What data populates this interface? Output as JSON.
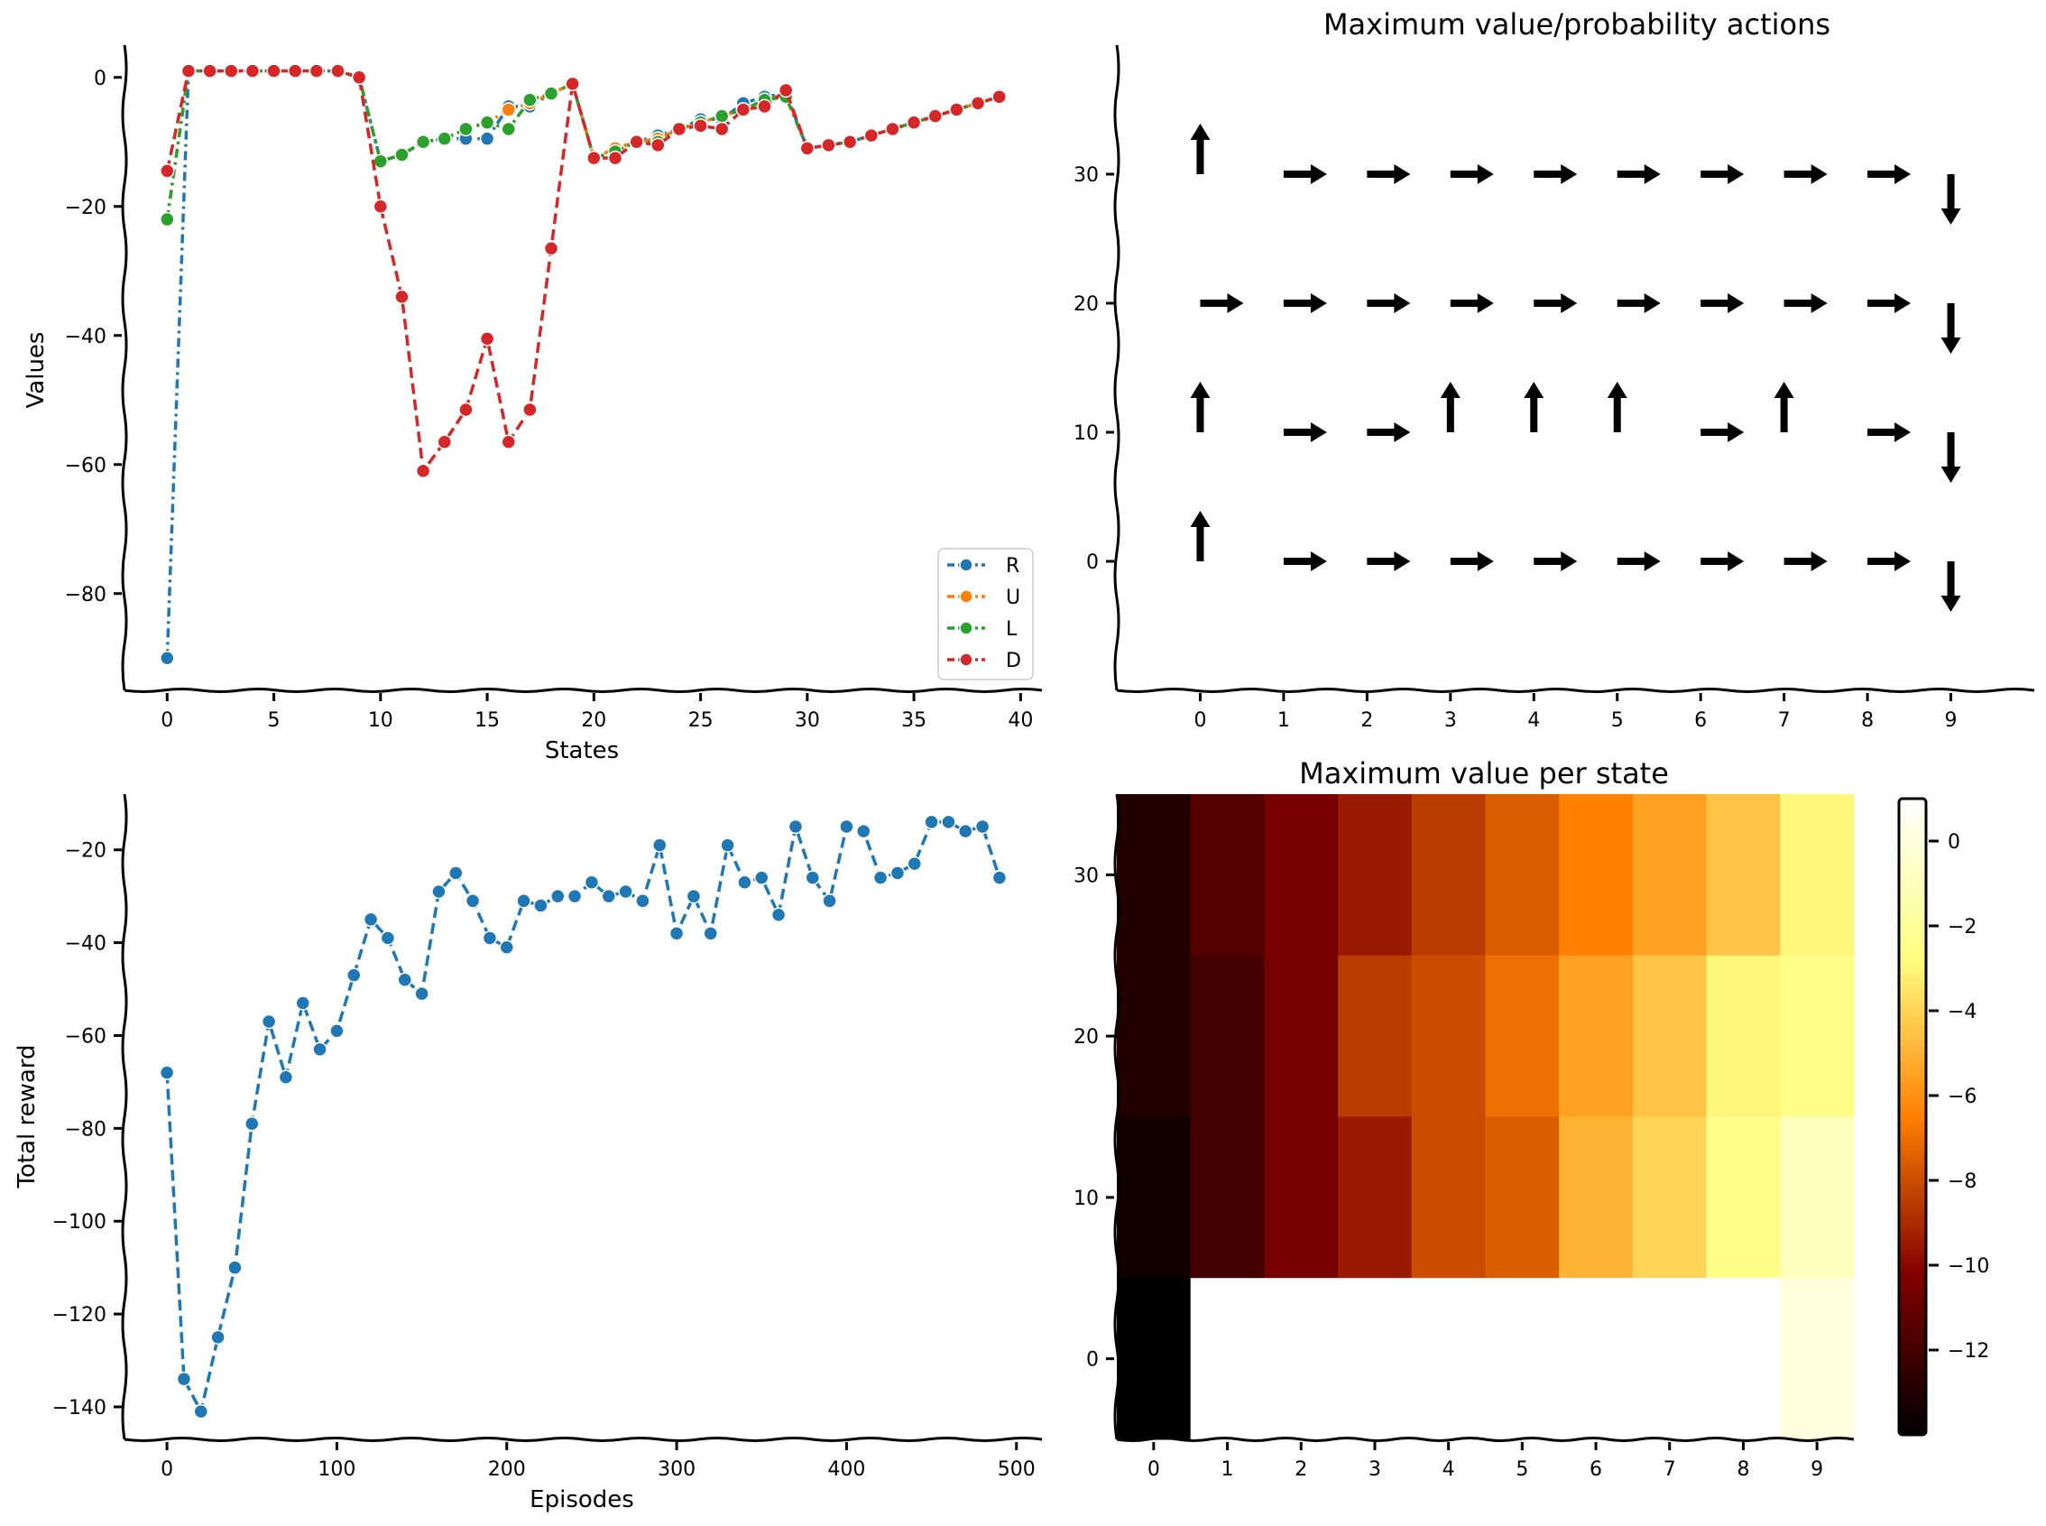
{
  "charts": [
    {
      "type": "line",
      "title": "",
      "xlabel": "States",
      "ylabel": "Values",
      "xlim": [
        -2,
        41
      ],
      "ylim": [
        -95,
        5
      ],
      "xticks": [
        0,
        5,
        10,
        15,
        20,
        25,
        30,
        35,
        40
      ],
      "yticks": [
        0,
        -20,
        -40,
        -60,
        -80
      ],
      "legend_position": "lower-right",
      "series": [
        {
          "name": "R",
          "color": "#1f77b4",
          "x": [
            0,
            1,
            2,
            3,
            4,
            5,
            6,
            7,
            8,
            9,
            10,
            11,
            12,
            13,
            14,
            15,
            16,
            17,
            18,
            19,
            20,
            21,
            22,
            23,
            24,
            25,
            26,
            27,
            28,
            29,
            30,
            31,
            32,
            33,
            34,
            35,
            36,
            37,
            38,
            39
          ],
          "values": [
            -90,
            1,
            1,
            1,
            1,
            1,
            1,
            1,
            1,
            0,
            -13,
            -12,
            -10,
            -9.5,
            -9.5,
            -9.5,
            -4.5,
            -4.5,
            -2.5,
            -1,
            -12.5,
            -11,
            -10,
            -9,
            -8,
            -6.5,
            -6.5,
            -4,
            -3,
            -2.5,
            -11,
            -10.5,
            -10,
            -9,
            -8,
            -7,
            -6,
            -5,
            -4,
            -3
          ]
        },
        {
          "name": "U",
          "color": "#ff7f0e",
          "x": [
            0,
            1,
            2,
            3,
            4,
            5,
            6,
            7,
            8,
            9,
            10,
            11,
            12,
            13,
            14,
            15,
            16,
            17,
            18,
            19,
            20,
            21,
            22,
            23,
            24,
            25,
            26,
            27,
            28,
            29,
            30,
            31,
            32,
            33,
            34,
            35,
            36,
            37,
            38,
            39
          ],
          "values": [
            -22,
            1,
            1,
            1,
            1,
            1,
            1,
            1,
            1,
            0,
            -13,
            -12,
            -10,
            -9.5,
            -8,
            -7,
            -5,
            -4,
            -2.5,
            -1,
            -12.5,
            -11,
            -10,
            -9.5,
            -8,
            -7,
            -6,
            -5,
            -3.5,
            -2.5,
            -11,
            -10.5,
            -10,
            -9,
            -8,
            -7,
            -6,
            -5,
            -4,
            -3
          ]
        },
        {
          "name": "L",
          "color": "#2ca02c",
          "x": [
            0,
            1,
            2,
            3,
            4,
            5,
            6,
            7,
            8,
            9,
            10,
            11,
            12,
            13,
            14,
            15,
            16,
            17,
            18,
            19,
            20,
            21,
            22,
            23,
            24,
            25,
            26,
            27,
            28,
            29,
            30,
            31,
            32,
            33,
            34,
            35,
            36,
            37,
            38,
            39
          ],
          "values": [
            -22,
            1,
            1,
            1,
            1,
            1,
            1,
            1,
            1,
            0,
            -13,
            -12,
            -10,
            -9.5,
            -8,
            -7,
            -8,
            -3.5,
            -2.5,
            -1,
            -12.5,
            -11.5,
            -10,
            -10,
            -8,
            -7,
            -6,
            -5,
            -3.5,
            -3,
            -11,
            -10.5,
            -10,
            -9,
            -8,
            -7,
            -6,
            -5,
            -4,
            -3
          ]
        },
        {
          "name": "D",
          "color": "#d62728",
          "x": [
            0,
            1,
            2,
            3,
            4,
            5,
            6,
            7,
            8,
            9,
            10,
            11,
            12,
            13,
            14,
            15,
            16,
            17,
            18,
            19,
            20,
            21,
            22,
            23,
            24,
            25,
            26,
            27,
            28,
            29,
            30,
            31,
            32,
            33,
            34,
            35,
            36,
            37,
            38,
            39
          ],
          "values": [
            -14.5,
            1,
            1,
            1,
            1,
            1,
            1,
            1,
            1,
            0,
            -20,
            -34,
            -61,
            -56.5,
            -51.5,
            -40.5,
            -56.5,
            -51.5,
            -26.5,
            -1,
            -12.5,
            -12.5,
            -10,
            -10.5,
            -8,
            -7.5,
            -8,
            -5,
            -4.5,
            -2,
            -11,
            -10.5,
            -10,
            -9,
            -8,
            -7,
            -6,
            -5,
            -4,
            -3
          ]
        }
      ]
    },
    {
      "type": "quiver",
      "title": "Maximum value/probability actions",
      "xlim": [
        -1,
        10
      ],
      "ylim": [
        -10,
        40
      ],
      "xticks": [
        0,
        1,
        2,
        3,
        4,
        5,
        6,
        7,
        8,
        9
      ],
      "yticks": [
        0,
        10,
        20,
        30
      ],
      "grid_rows": [
        0,
        10,
        20,
        30
      ],
      "arrows": [
        {
          "row": 30,
          "dirs": [
            "up",
            "right",
            "right",
            "right",
            "right",
            "right",
            "right",
            "right",
            "right",
            "down"
          ]
        },
        {
          "row": 20,
          "dirs": [
            "right",
            "right",
            "right",
            "right",
            "right",
            "right",
            "right",
            "right",
            "right",
            "down"
          ]
        },
        {
          "row": 10,
          "dirs": [
            "up",
            "right",
            "right",
            "up",
            "up",
            "up",
            "right",
            "up",
            "right",
            "down"
          ]
        },
        {
          "row": 0,
          "dirs": [
            "up",
            "right",
            "right",
            "right",
            "right",
            "right",
            "right",
            "right",
            "right",
            "down"
          ]
        }
      ]
    },
    {
      "type": "line",
      "title": "",
      "xlabel": "Episodes",
      "ylabel": "Total reward",
      "xlim": [
        -25,
        515
      ],
      "ylim": [
        -147,
        -8
      ],
      "xticks": [
        0,
        100,
        200,
        300,
        400,
        500
      ],
      "yticks": [
        -20,
        -40,
        -60,
        -80,
        -100,
        -120,
        -140
      ],
      "series": [
        {
          "name": "",
          "color": "#1f77b4",
          "x": [
            0,
            10,
            20,
            30,
            40,
            50,
            60,
            70,
            80,
            90,
            100,
            110,
            120,
            130,
            140,
            150,
            160,
            170,
            180,
            190,
            200,
            210,
            220,
            230,
            240,
            250,
            260,
            270,
            280,
            290,
            300,
            310,
            320,
            330,
            340,
            350,
            360,
            370,
            380,
            390,
            400,
            410,
            420,
            430,
            440,
            450,
            460,
            470,
            480,
            490
          ],
          "values": [
            -68,
            -134,
            -141,
            -125,
            -110,
            -79,
            -57,
            -69,
            -53,
            -63,
            -59,
            -47,
            -35,
            -39,
            -48,
            -51,
            -29,
            -25,
            -31,
            -39,
            -41,
            -31,
            -32,
            -30,
            -30,
            -27,
            -30,
            -29,
            -31,
            -19,
            -38,
            -30,
            -38,
            -19,
            -27,
            -26,
            -34,
            -15,
            -26,
            -31,
            -15,
            -16,
            -26,
            -25,
            -23,
            -14,
            -14,
            -16,
            -15,
            -26
          ]
        }
      ]
    },
    {
      "type": "heatmap",
      "title": "Maximum value per state",
      "xticks": [
        0,
        1,
        2,
        3,
        4,
        5,
        6,
        7,
        8,
        9
      ],
      "yticks": [
        30,
        20,
        10,
        0
      ],
      "rows": [
        30,
        20,
        10,
        0
      ],
      "values": [
        [
          -13,
          -11.5,
          -10.5,
          -9.5,
          -8.5,
          -7.5,
          -6.5,
          -5.5,
          -4.5,
          -3
        ],
        [
          -13,
          -12,
          -10.5,
          -8.5,
          -8,
          -7,
          -5.5,
          -4.5,
          -3,
          -2.5
        ],
        [
          -13.5,
          -12,
          -10.5,
          -9.5,
          -8,
          -7.5,
          -5,
          -4,
          -2.5,
          -1
        ],
        [
          -14,
          null,
          null,
          null,
          null,
          null,
          null,
          null,
          null,
          0
        ]
      ],
      "colorbar": {
        "ticks": [
          0,
          -2,
          -4,
          -6,
          -8,
          -10,
          -12
        ],
        "min": -14,
        "max": 1,
        "colormap": "afmhot"
      }
    }
  ]
}
